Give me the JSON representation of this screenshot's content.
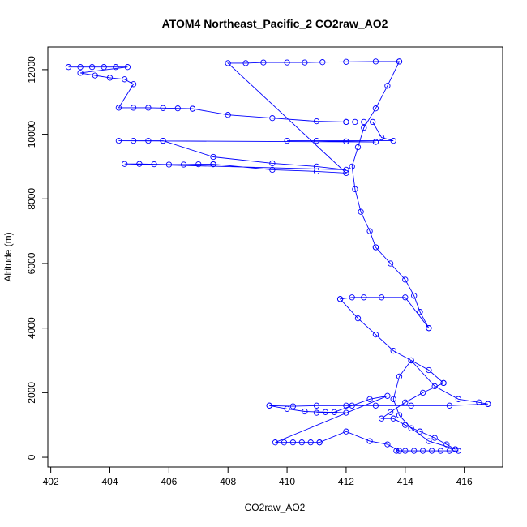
{
  "chart_data": {
    "type": "scatter",
    "title": "ATOM4 Northeast_Pacific_2 CO2raw_AO2",
    "xlabel": "CO2raw_AO2",
    "ylabel": "Altitude (m)",
    "xlim": [
      401.9,
      417.3
    ],
    "ylim": [
      -300,
      12700
    ],
    "xticks": [
      402,
      404,
      406,
      408,
      410,
      412,
      414,
      416
    ],
    "xtick_labels": [
      "402",
      "404",
      "406",
      "408",
      "410",
      "412",
      "414",
      "416"
    ],
    "yticks": [
      0,
      2000,
      4000,
      6000,
      8000,
      10000,
      12000
    ],
    "ytick_labels": [
      "0",
      "2000",
      "4000",
      "6000",
      "8000",
      "10000",
      "12000"
    ],
    "grid": false,
    "legend": "none",
    "series": [
      {
        "color": "#0000ff",
        "marker": "open-circle",
        "connected": true,
        "x": [
          402.6,
          403.0,
          403.4,
          403.8,
          404.2,
          404.6,
          403.0,
          403.5,
          404.0,
          404.5,
          404.8,
          404.3,
          404.8,
          405.3,
          405.8,
          406.3,
          406.8,
          406.8,
          408.0,
          409.5,
          411.0,
          412.0,
          412.0,
          412.3,
          412.6,
          412.9,
          413.2,
          413.6,
          410.0,
          411.0,
          412.0,
          413.0,
          404.3,
          404.8,
          405.3,
          405.8,
          405.8,
          407.5,
          409.5,
          411.0,
          412.0,
          404.5,
          405.0,
          405.5,
          406.0,
          406.5,
          407.0,
          407.5,
          407.5,
          409.5,
          411.0,
          412.0,
          408.0,
          408.6,
          409.2,
          410.0,
          410.6,
          411.2,
          412.0,
          413.0,
          413.8,
          413.8,
          413.4,
          413.0,
          412.6,
          412.4,
          412.2,
          412.3,
          412.5,
          412.8,
          413.0,
          413.0,
          413.5,
          414.0,
          414.3,
          414.5,
          414.8,
          414.8,
          414.0,
          413.2,
          412.6,
          412.2,
          411.8,
          411.8,
          412.4,
          413.0,
          413.6,
          414.2,
          414.8,
          415.3,
          415.3,
          414.6,
          414.0,
          413.5,
          413.2,
          413.6,
          414.0,
          414.5,
          415.0,
          415.4,
          415.7,
          415.7,
          414.8,
          414.2,
          413.8,
          413.6,
          413.8,
          414.2,
          414.2,
          415.0,
          415.8,
          416.5,
          416.8,
          416.8,
          415.5,
          414.2,
          413.0,
          412.0,
          411.0,
          410.2,
          409.4,
          409.4,
          410.0,
          410.6,
          411.3,
          412.0,
          411.0,
          411.6,
          412.2,
          412.8,
          413.4,
          409.6,
          409.9,
          410.2,
          410.5,
          410.8,
          411.1,
          411.1,
          412.0,
          412.8,
          413.4,
          413.8,
          413.7,
          414.0,
          414.3,
          414.6,
          414.9,
          415.2,
          415.5,
          415.8
        ],
        "y": [
          12080,
          12080,
          12080,
          12080,
          12080,
          12080,
          11900,
          11820,
          11750,
          11700,
          11550,
          10820,
          10820,
          10820,
          10810,
          10800,
          10790,
          10790,
          10600,
          10500,
          10400,
          10380,
          10380,
          10380,
          10380,
          10380,
          9900,
          9800,
          9800,
          9800,
          9780,
          9760,
          9800,
          9800,
          9800,
          9800,
          9800,
          9300,
          9100,
          9000,
          8900,
          9080,
          9080,
          9070,
          9060,
          9060,
          9070,
          9070,
          9070,
          8900,
          8850,
          8800,
          12200,
          12200,
          12220,
          12220,
          12220,
          12230,
          12240,
          12250,
          12250,
          12250,
          11500,
          10800,
          10200,
          9600,
          9000,
          8300,
          7600,
          7000,
          6500,
          6500,
          6000,
          5500,
          5000,
          4500,
          4000,
          4000,
          4950,
          4950,
          4950,
          4950,
          4900,
          4900,
          4300,
          3800,
          3300,
          3000,
          2700,
          2300,
          2300,
          2000,
          1700,
          1400,
          1200,
          1200,
          1000,
          800,
          600,
          400,
          250,
          250,
          500,
          900,
          1300,
          1800,
          2500,
          3000,
          3000,
          2200,
          1800,
          1700,
          1650,
          1650,
          1600,
          1600,
          1600,
          1600,
          1600,
          1580,
          1600,
          1600,
          1500,
          1420,
          1400,
          1380,
          1380,
          1400,
          1600,
          1800,
          1900,
          460,
          460,
          460,
          460,
          460,
          460,
          460,
          800,
          500,
          400,
          200,
          200,
          200,
          200,
          200,
          200,
          200,
          200,
          200
        ]
      }
    ]
  }
}
